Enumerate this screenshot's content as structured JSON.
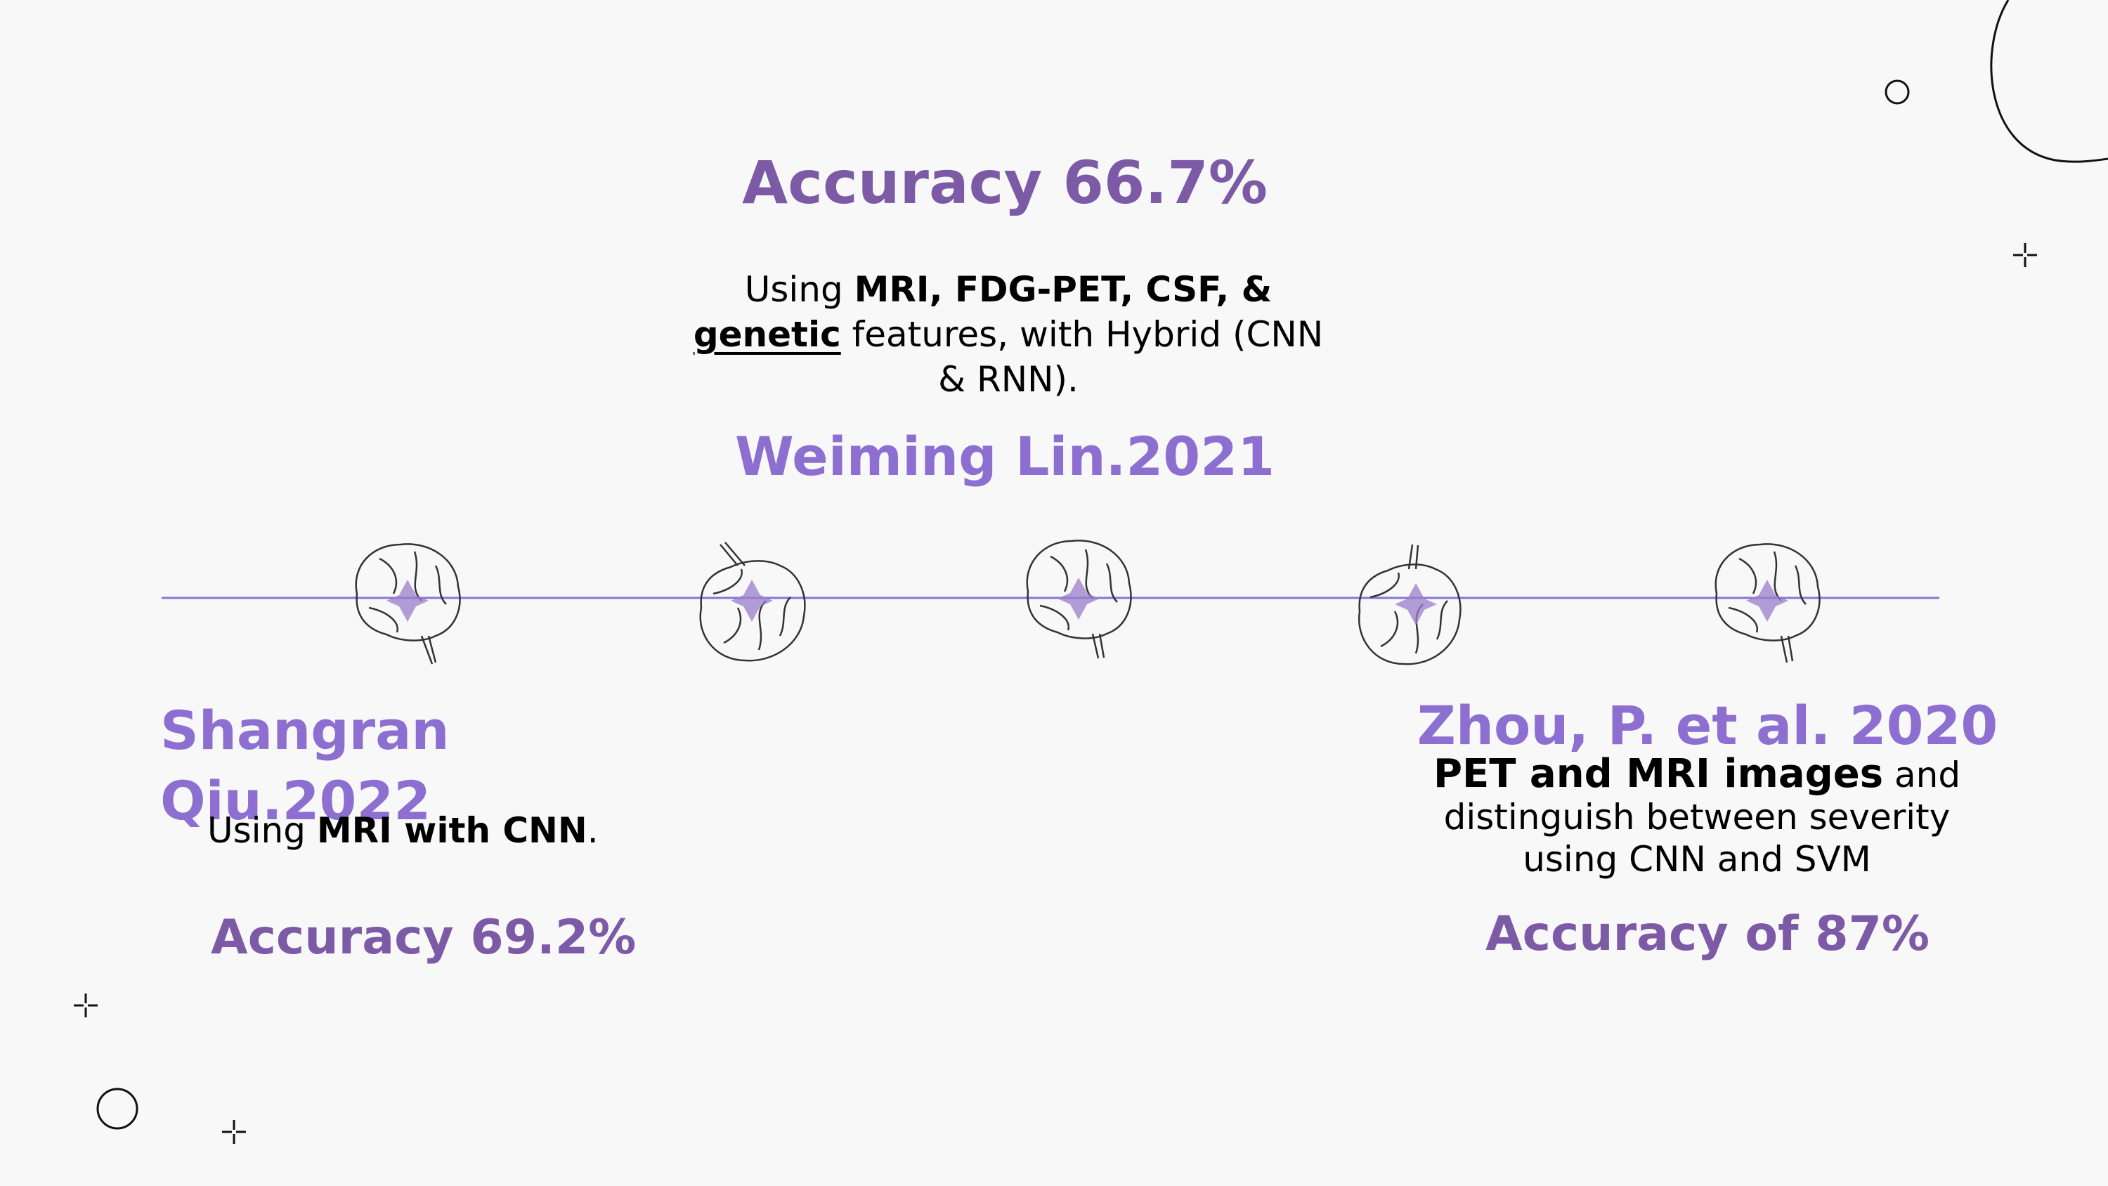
{
  "colors": {
    "accent_dark": "#7c5aa6",
    "accent_light": "#8c6fd0",
    "timeline_line": "#8577d6",
    "background": "#f8f8f8"
  },
  "top": {
    "accuracy": "Accuracy 66.7%",
    "desc": {
      "p1": "Using ",
      "b1": "MRI, FDG-PET, CSF, &",
      "u1": "genetic",
      "p2": " features, with Hybrid (CNN & RNN)."
    },
    "author": "Weiming Lin.2021"
  },
  "left": {
    "author": "Shangran Qiu.2022",
    "desc": {
      "p1": "Using ",
      "b1": "MRI with CNN",
      "p2": "."
    },
    "accuracy": "Accuracy 69.2%"
  },
  "right": {
    "author": "Zhou, P. et al. 2020",
    "desc": {
      "b1": "PET and MRI images",
      "p1": " and distinguish between severity using CNN and SVM"
    },
    "accuracy": "Accuracy of 87%"
  },
  "timeline": {
    "nodes": [
      {
        "icon": "brain-icon"
      },
      {
        "icon": "brain-icon"
      },
      {
        "icon": "brain-icon"
      },
      {
        "icon": "brain-icon"
      },
      {
        "icon": "brain-icon"
      }
    ]
  }
}
